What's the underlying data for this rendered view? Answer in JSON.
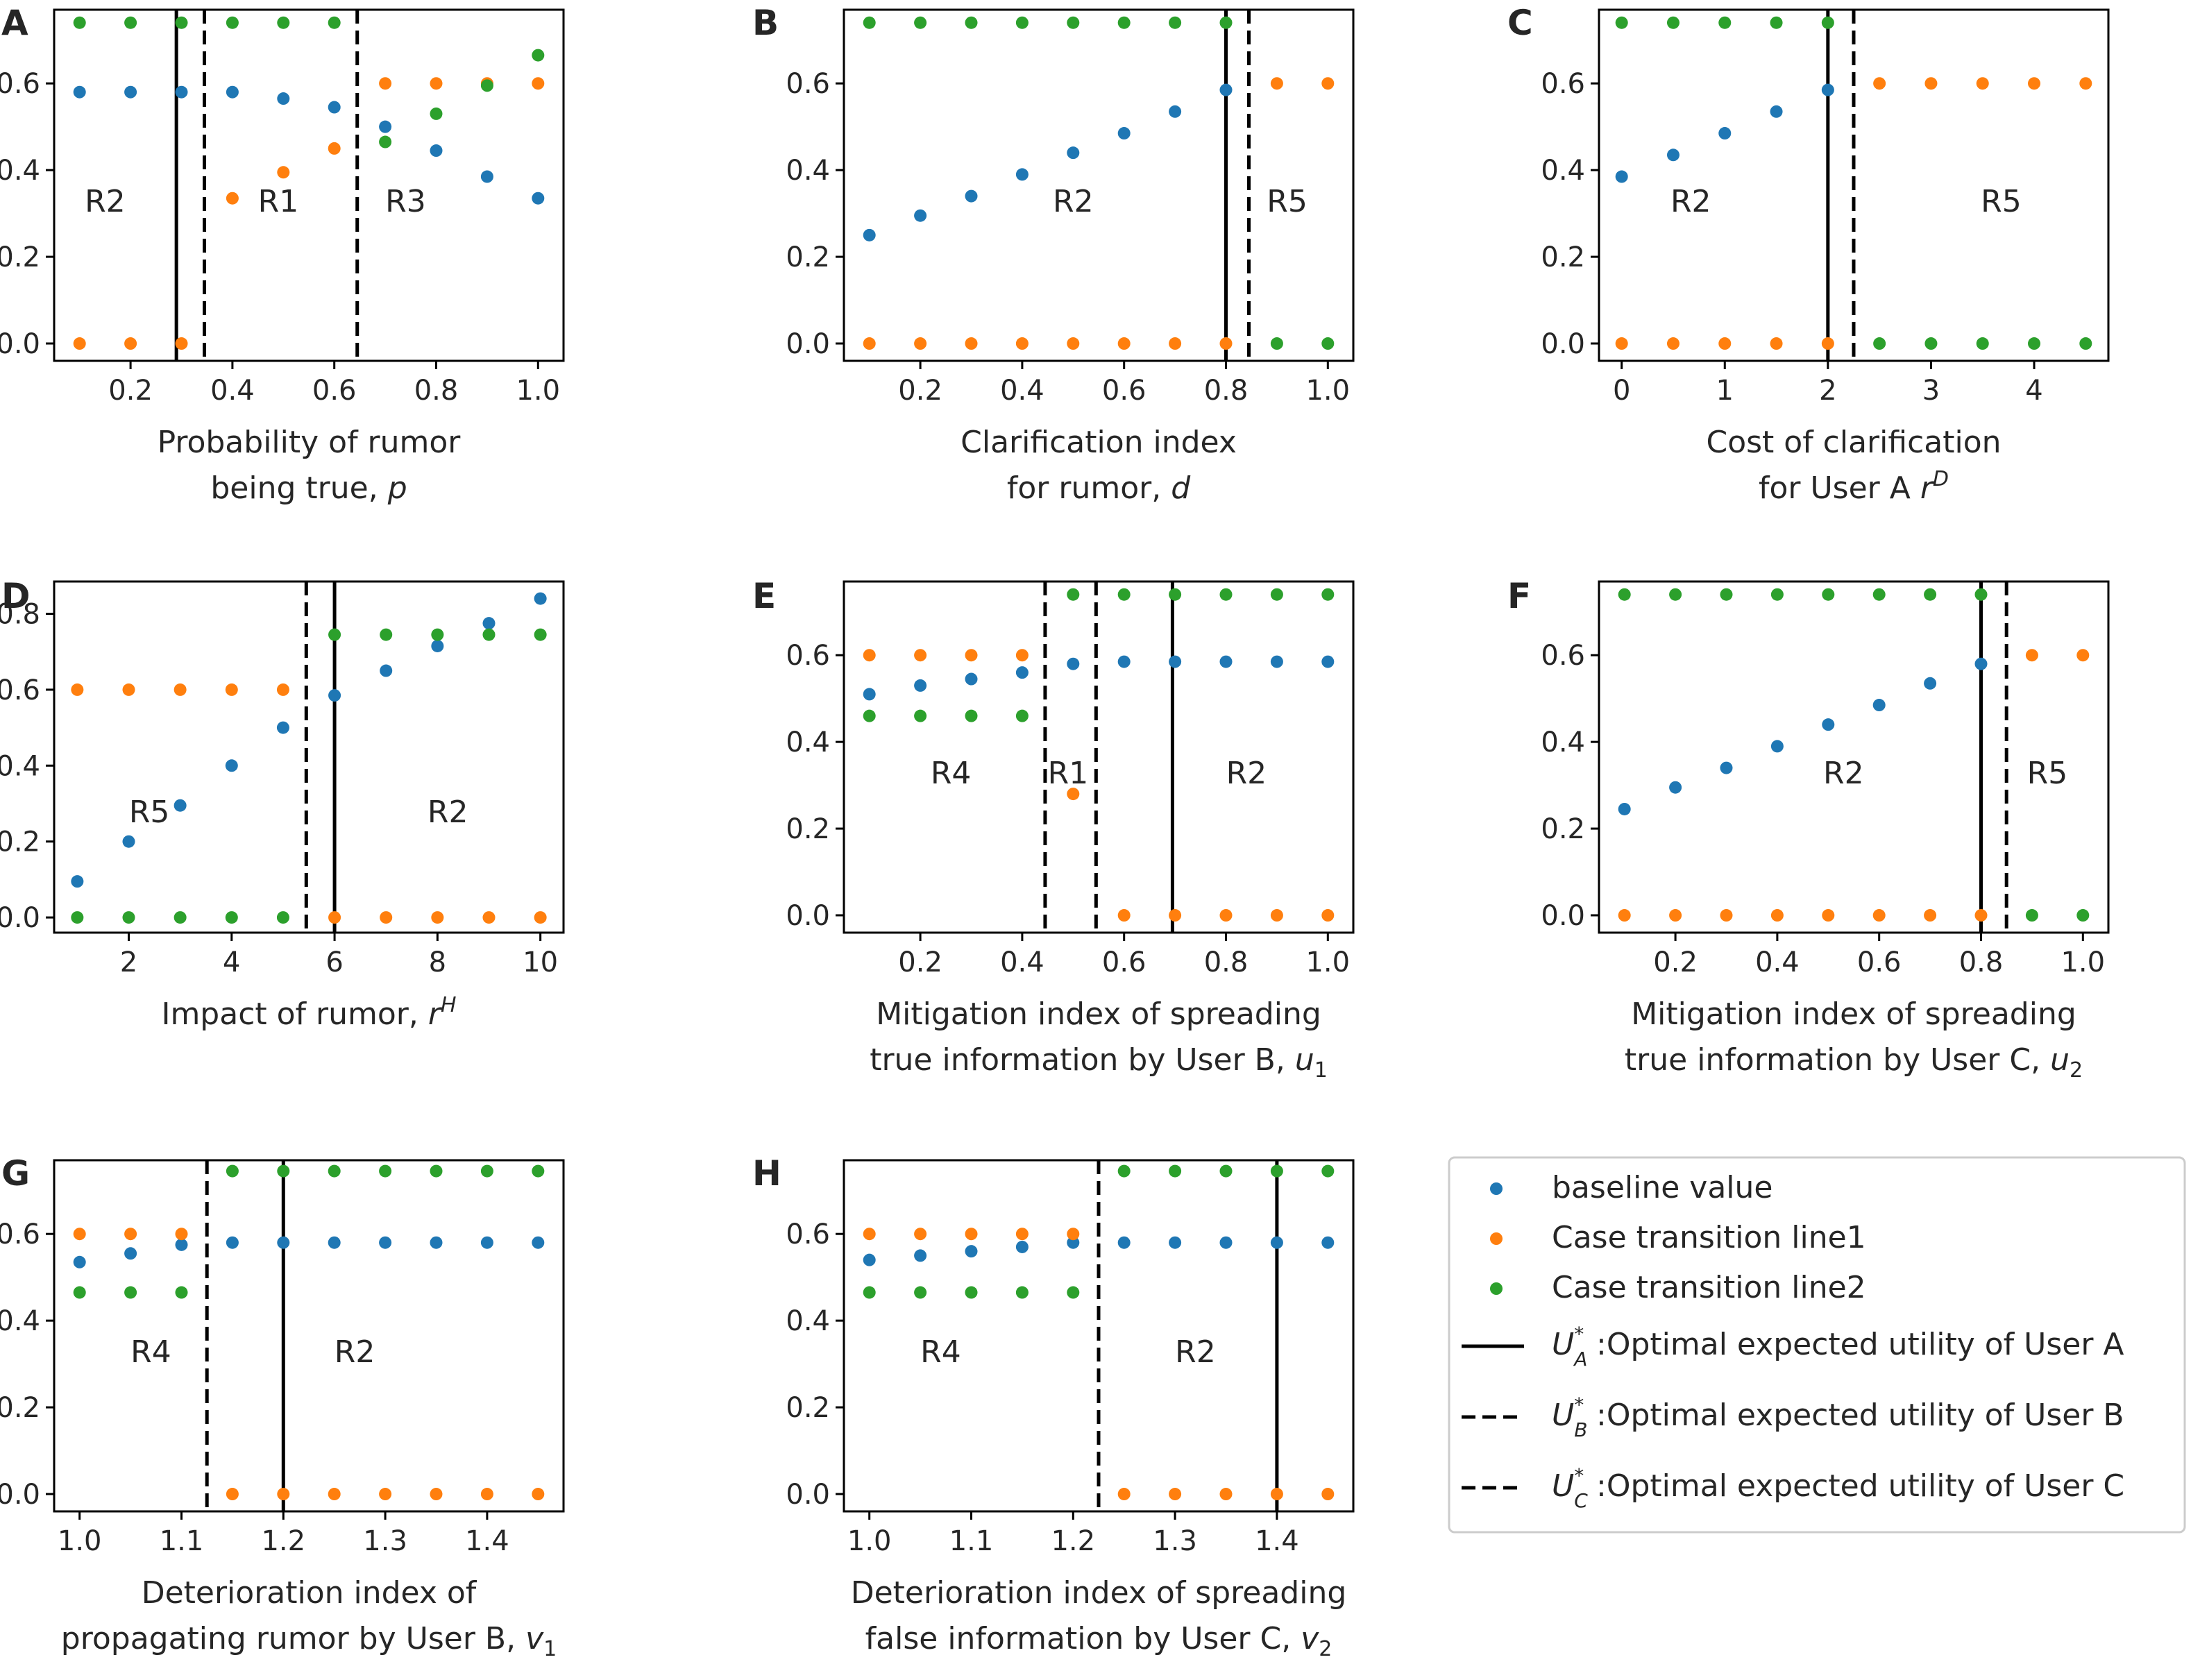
{
  "colors": {
    "blue": "#1f77b4",
    "orange": "#ff7f0e",
    "green": "#2ca02c",
    "line": "#000000"
  },
  "legend": {
    "baseline": "baseline value",
    "line1": "Case transition line1",
    "line2": "Case transition line2",
    "ua": ":Optimal expected utility of User A",
    "ub": ":Optimal expected utility of User B",
    "uc": ":Optimal expected utility of User C"
  },
  "chart_data": [
    {
      "panel": "A",
      "type": "scatter",
      "xlabel_lines": [
        "Probability of rumor",
        "being true, p"
      ],
      "x": [
        0.1,
        0.2,
        0.3,
        0.4,
        0.5,
        0.6,
        0.7,
        0.8,
        0.9,
        1.0
      ],
      "xlim": [
        0.05,
        1.05
      ],
      "ylim": [
        -0.04,
        0.77
      ],
      "xticks": [
        0.2,
        0.4,
        0.6,
        0.8,
        1.0
      ],
      "xtick_labels": [
        "0.2",
        "0.4",
        "0.6",
        "0.8",
        "1.0"
      ],
      "yticks": [
        0,
        0.2,
        0.4,
        0.6
      ],
      "ytick_labels": [
        "0.0",
        "0.2",
        "0.4",
        "0.6"
      ],
      "series": [
        {
          "name": "baseline value",
          "values": [
            0.58,
            0.58,
            0.58,
            0.58,
            0.565,
            0.545,
            0.5,
            0.445,
            0.385,
            0.335
          ]
        },
        {
          "name": "Case transition line1",
          "values": [
            0.0,
            0.0,
            0.0,
            0.335,
            0.395,
            0.45,
            0.6,
            0.6,
            0.6,
            0.6
          ]
        },
        {
          "name": "Case transition line2",
          "values": [
            0.74,
            0.74,
            0.74,
            0.74,
            0.74,
            0.74,
            0.465,
            0.53,
            0.595,
            0.665
          ]
        }
      ],
      "vlines": [
        {
          "x": 0.29,
          "style": "solid"
        },
        {
          "x": 0.345,
          "style": "dashed"
        },
        {
          "x": 0.645,
          "style": "dashed"
        }
      ],
      "regions": [
        {
          "label": "R2",
          "x": 0.15,
          "y": 0.33
        },
        {
          "label": "R1",
          "x": 0.49,
          "y": 0.33
        },
        {
          "label": "R3",
          "x": 0.74,
          "y": 0.33
        }
      ]
    },
    {
      "panel": "B",
      "type": "scatter",
      "xlabel_lines": [
        "Clarification index",
        "for rumor, d"
      ],
      "x": [
        0.1,
        0.2,
        0.3,
        0.4,
        0.5,
        0.6,
        0.7,
        0.8,
        0.9,
        1.0
      ],
      "xlim": [
        0.05,
        1.05
      ],
      "ylim": [
        -0.04,
        0.77
      ],
      "xticks": [
        0.2,
        0.4,
        0.6,
        0.8,
        1.0
      ],
      "xtick_labels": [
        "0.2",
        "0.4",
        "0.6",
        "0.8",
        "1.0"
      ],
      "yticks": [
        0,
        0.2,
        0.4,
        0.6
      ],
      "ytick_labels": [
        "0.0",
        "0.2",
        "0.4",
        "0.6"
      ],
      "series": [
        {
          "name": "baseline value",
          "values": [
            0.25,
            0.295,
            0.34,
            0.39,
            0.44,
            0.485,
            0.535,
            0.585,
            null,
            null
          ]
        },
        {
          "name": "Case transition line1",
          "values": [
            0.0,
            0.0,
            0.0,
            0.0,
            0.0,
            0.0,
            0.0,
            0.0,
            0.6,
            0.6
          ]
        },
        {
          "name": "Case transition line2",
          "values": [
            0.74,
            0.74,
            0.74,
            0.74,
            0.74,
            0.74,
            0.74,
            0.74,
            0.0,
            0.0
          ]
        }
      ],
      "vlines": [
        {
          "x": 0.8,
          "style": "solid"
        },
        {
          "x": 0.845,
          "style": "dashed"
        }
      ],
      "regions": [
        {
          "label": "R2",
          "x": 0.5,
          "y": 0.33
        },
        {
          "label": "R5",
          "x": 0.92,
          "y": 0.33
        }
      ]
    },
    {
      "panel": "C",
      "type": "scatter",
      "xlabel_lines": [
        "Cost of clarification",
        "for User A r^D"
      ],
      "x": [
        0,
        0.5,
        1.0,
        1.5,
        2.0,
        2.5,
        3.0,
        3.5,
        4.0,
        4.5
      ],
      "xlim": [
        -0.22,
        4.72
      ],
      "ylim": [
        -0.04,
        0.77
      ],
      "xticks": [
        0,
        1,
        2,
        3,
        4
      ],
      "xtick_labels": [
        "0",
        "1",
        "2",
        "3",
        "4"
      ],
      "yticks": [
        0,
        0.2,
        0.4,
        0.6
      ],
      "ytick_labels": [
        "0.0",
        "0.2",
        "0.4",
        "0.6"
      ],
      "series": [
        {
          "name": "baseline value",
          "values": [
            0.385,
            0.435,
            0.485,
            0.535,
            0.585,
            null,
            null,
            null,
            null,
            null
          ]
        },
        {
          "name": "Case transition line1",
          "values": [
            0.0,
            0.0,
            0.0,
            0.0,
            0.0,
            0.6,
            0.6,
            0.6,
            0.6,
            0.6
          ]
        },
        {
          "name": "Case transition line2",
          "values": [
            0.74,
            0.74,
            0.74,
            0.74,
            0.74,
            0.0,
            0.0,
            0.0,
            0.0,
            0.0
          ]
        }
      ],
      "vlines": [
        {
          "x": 2.0,
          "style": "solid"
        },
        {
          "x": 2.25,
          "style": "dashed"
        }
      ],
      "regions": [
        {
          "label": "R2",
          "x": 0.67,
          "y": 0.33
        },
        {
          "label": "R5",
          "x": 3.68,
          "y": 0.33
        }
      ]
    },
    {
      "panel": "D",
      "type": "scatter",
      "xlabel_lines": [
        "Impact of rumor, r^H"
      ],
      "x": [
        1,
        2,
        3,
        4,
        5,
        6,
        7,
        8,
        9,
        10
      ],
      "xlim": [
        0.55,
        10.45
      ],
      "ylim": [
        -0.04,
        0.885
      ],
      "xticks": [
        2,
        4,
        6,
        8,
        10
      ],
      "xtick_labels": [
        "2",
        "4",
        "6",
        "8",
        "10"
      ],
      "yticks": [
        0,
        0.2,
        0.4,
        0.6,
        0.8
      ],
      "ytick_labels": [
        "0.0",
        "0.2",
        "0.4",
        "0.6",
        "0.8"
      ],
      "series": [
        {
          "name": "baseline value",
          "values": [
            0.095,
            0.2,
            0.295,
            0.4,
            0.5,
            0.585,
            0.65,
            0.715,
            0.775,
            0.84
          ]
        },
        {
          "name": "Case transition line1",
          "values": [
            0.6,
            0.6,
            0.6,
            0.6,
            0.6,
            0.0,
            0.0,
            0.0,
            0.0,
            0.0
          ]
        },
        {
          "name": "Case transition line2",
          "values": [
            0.0,
            0.0,
            0.0,
            0.0,
            0.0,
            0.745,
            0.745,
            0.745,
            0.745,
            0.745
          ]
        }
      ],
      "vlines": [
        {
          "x": 5.45,
          "style": "dashed"
        },
        {
          "x": 6.0,
          "style": "solid"
        }
      ],
      "regions": [
        {
          "label": "R5",
          "x": 2.4,
          "y": 0.28
        },
        {
          "label": "R2",
          "x": 8.2,
          "y": 0.28
        }
      ]
    },
    {
      "panel": "E",
      "type": "scatter",
      "xlabel_lines": [
        "Mitigation index of spreading",
        "true information by User B, u1"
      ],
      "x": [
        0.1,
        0.2,
        0.3,
        0.4,
        0.5,
        0.6,
        0.7,
        0.8,
        0.9,
        1.0
      ],
      "xlim": [
        0.05,
        1.05
      ],
      "ylim": [
        -0.04,
        0.77
      ],
      "xticks": [
        0.2,
        0.4,
        0.6,
        0.8,
        1.0
      ],
      "xtick_labels": [
        "0.2",
        "0.4",
        "0.6",
        "0.8",
        "1.0"
      ],
      "yticks": [
        0,
        0.2,
        0.4,
        0.6
      ],
      "ytick_labels": [
        "0.0",
        "0.2",
        "0.4",
        "0.6"
      ],
      "series": [
        {
          "name": "baseline value",
          "values": [
            0.51,
            0.53,
            0.545,
            0.56,
            0.58,
            0.585,
            0.585,
            0.585,
            0.585,
            0.585
          ]
        },
        {
          "name": "Case transition line1",
          "values": [
            0.6,
            0.6,
            0.6,
            0.6,
            0.28,
            0.0,
            0.0,
            0.0,
            0.0,
            0.0
          ]
        },
        {
          "name": "Case transition line2",
          "values": [
            0.46,
            0.46,
            0.46,
            0.46,
            0.74,
            0.74,
            0.74,
            0.74,
            0.74,
            0.74
          ]
        }
      ],
      "vlines": [
        {
          "x": 0.445,
          "style": "dashed"
        },
        {
          "x": 0.545,
          "style": "dashed"
        },
        {
          "x": 0.695,
          "style": "solid"
        }
      ],
      "regions": [
        {
          "label": "R4",
          "x": 0.26,
          "y": 0.33
        },
        {
          "label": "R1",
          "x": 0.49,
          "y": 0.33
        },
        {
          "label": "R2",
          "x": 0.84,
          "y": 0.33
        }
      ]
    },
    {
      "panel": "F",
      "type": "scatter",
      "xlabel_lines": [
        "Mitigation index of spreading",
        "true information by User C, u2"
      ],
      "x": [
        0.1,
        0.2,
        0.3,
        0.4,
        0.5,
        0.6,
        0.7,
        0.8,
        0.9,
        1.0
      ],
      "xlim": [
        0.05,
        1.05
      ],
      "ylim": [
        -0.04,
        0.77
      ],
      "xticks": [
        0.2,
        0.4,
        0.6,
        0.8,
        1.0
      ],
      "xtick_labels": [
        "0.2",
        "0.4",
        "0.6",
        "0.8",
        "1.0"
      ],
      "yticks": [
        0,
        0.2,
        0.4,
        0.6
      ],
      "ytick_labels": [
        "0.0",
        "0.2",
        "0.4",
        "0.6"
      ],
      "series": [
        {
          "name": "baseline value",
          "values": [
            0.245,
            0.295,
            0.34,
            0.39,
            0.44,
            0.485,
            0.535,
            0.58,
            null,
            null
          ]
        },
        {
          "name": "Case transition line1",
          "values": [
            0.0,
            0.0,
            0.0,
            0.0,
            0.0,
            0.0,
            0.0,
            0.0,
            0.6,
            0.6
          ]
        },
        {
          "name": "Case transition line2",
          "values": [
            0.74,
            0.74,
            0.74,
            0.74,
            0.74,
            0.74,
            0.74,
            0.74,
            0.0,
            0.0
          ]
        }
      ],
      "vlines": [
        {
          "x": 0.8,
          "style": "solid"
        },
        {
          "x": 0.85,
          "style": "dashed"
        }
      ],
      "regions": [
        {
          "label": "R2",
          "x": 0.53,
          "y": 0.33
        },
        {
          "label": "R5",
          "x": 0.93,
          "y": 0.33
        }
      ]
    },
    {
      "panel": "G",
      "type": "scatter",
      "xlabel_lines": [
        "Deterioration index of",
        "propagating rumor by User B, v1"
      ],
      "x": [
        1.0,
        1.05,
        1.1,
        1.15,
        1.2,
        1.25,
        1.3,
        1.35,
        1.4,
        1.45
      ],
      "xlim": [
        0.975,
        1.475
      ],
      "ylim": [
        -0.04,
        0.77
      ],
      "xticks": [
        1.0,
        1.1,
        1.2,
        1.3,
        1.4
      ],
      "xtick_labels": [
        "1.0",
        "1.1",
        "1.2",
        "1.3",
        "1.4"
      ],
      "yticks": [
        0,
        0.2,
        0.4,
        0.6
      ],
      "ytick_labels": [
        "0.0",
        "0.2",
        "0.4",
        "0.6"
      ],
      "series": [
        {
          "name": "baseline value",
          "values": [
            0.535,
            0.555,
            0.575,
            0.58,
            0.58,
            0.58,
            0.58,
            0.58,
            0.58,
            0.58
          ]
        },
        {
          "name": "Case transition line1",
          "values": [
            0.6,
            0.6,
            0.6,
            0.0,
            0.0,
            0.0,
            0.0,
            0.0,
            0.0,
            0.0
          ]
        },
        {
          "name": "Case transition line2",
          "values": [
            0.465,
            0.465,
            0.465,
            0.745,
            0.745,
            0.745,
            0.745,
            0.745,
            0.745,
            0.745
          ]
        }
      ],
      "vlines": [
        {
          "x": 1.125,
          "style": "dashed"
        },
        {
          "x": 1.2,
          "style": "solid"
        }
      ],
      "regions": [
        {
          "label": "R4",
          "x": 1.07,
          "y": 0.33
        },
        {
          "label": "R2",
          "x": 1.27,
          "y": 0.33
        }
      ]
    },
    {
      "panel": "H",
      "type": "scatter",
      "xlabel_lines": [
        "Deterioration index of spreading",
        "false information by User C, v2"
      ],
      "x": [
        1.0,
        1.05,
        1.1,
        1.15,
        1.2,
        1.25,
        1.3,
        1.35,
        1.4,
        1.45
      ],
      "xlim": [
        0.975,
        1.475
      ],
      "ylim": [
        -0.04,
        0.77
      ],
      "xticks": [
        1.0,
        1.1,
        1.2,
        1.3,
        1.4
      ],
      "xtick_labels": [
        "1.0",
        "1.1",
        "1.2",
        "1.3",
        "1.4"
      ],
      "yticks": [
        0,
        0.2,
        0.4,
        0.6
      ],
      "ytick_labels": [
        "0.0",
        "0.2",
        "0.4",
        "0.6"
      ],
      "series": [
        {
          "name": "baseline value",
          "values": [
            0.54,
            0.55,
            0.56,
            0.57,
            0.58,
            0.58,
            0.58,
            0.58,
            0.58,
            0.58
          ]
        },
        {
          "name": "Case transition line1",
          "values": [
            0.6,
            0.6,
            0.6,
            0.6,
            0.6,
            0.0,
            0.0,
            0.0,
            0.0,
            0.0
          ]
        },
        {
          "name": "Case transition line2",
          "values": [
            0.465,
            0.465,
            0.465,
            0.465,
            0.465,
            0.745,
            0.745,
            0.745,
            0.745,
            0.745
          ]
        }
      ],
      "vlines": [
        {
          "x": 1.225,
          "style": "dashed"
        },
        {
          "x": 1.4,
          "style": "solid"
        }
      ],
      "regions": [
        {
          "label": "R4",
          "x": 1.07,
          "y": 0.33
        },
        {
          "label": "R2",
          "x": 1.32,
          "y": 0.33
        }
      ]
    }
  ]
}
